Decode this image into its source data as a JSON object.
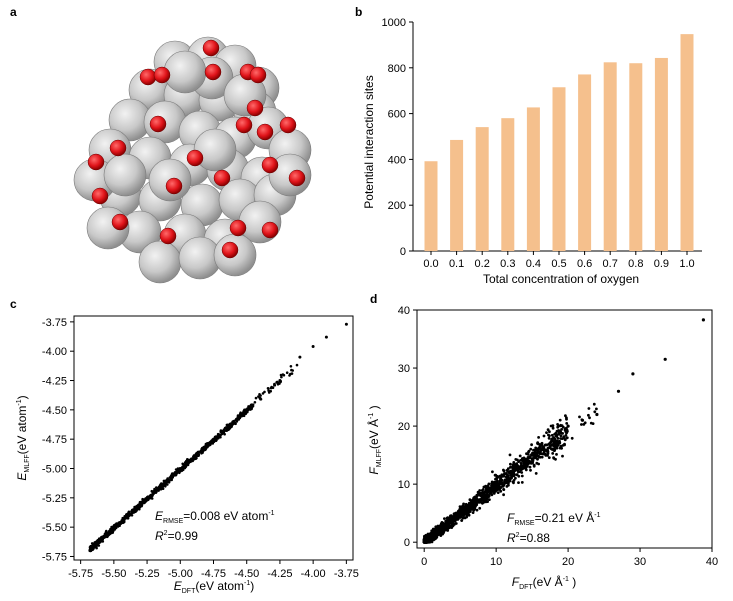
{
  "panels": {
    "a": "a",
    "b": "b",
    "c": "c",
    "d": "d"
  },
  "colors": {
    "bar": "#f5c08d",
    "atom_metal": "#c8c8c8",
    "atom_oxygen": "#e0141a",
    "points": "#000000"
  },
  "cluster": {
    "metal_atom_count": 50,
    "oxygen_atom_count": 24
  },
  "chart_data": [
    {
      "panel": "b",
      "type": "bar",
      "categories": [
        "0.0",
        "0.1",
        "0.2",
        "0.3",
        "0.4",
        "0.5",
        "0.6",
        "0.7",
        "0.8",
        "0.9",
        "1.0"
      ],
      "values": [
        392,
        485,
        541,
        580,
        627,
        715,
        771,
        824,
        820,
        843,
        947
      ],
      "xlabel": "Total concentration of oxygen",
      "ylabel": "Potential interaction sites",
      "ylim": [
        0,
        1000
      ],
      "yticks": [
        "0",
        "200",
        "400",
        "600",
        "800",
        "1000"
      ],
      "grid": false
    },
    {
      "panel": "c",
      "type": "scatter",
      "xlabel": {
        "sym": "E",
        "sub": "DFT",
        "unit": "(eV atom",
        "sup": "-1",
        "close": ")"
      },
      "ylabel": {
        "sym": "E",
        "sub": "MLFF",
        "unit": "(eV atom",
        "sup": "-1",
        "close": ")"
      },
      "xlim": [
        -5.8,
        -3.7
      ],
      "ylim": [
        -5.78,
        -3.7
      ],
      "xticks": [
        "-5.75",
        "-5.50",
        "-5.25",
        "-5.00",
        "-4.75",
        "-4.50",
        "-4.25",
        "-4.00",
        "-3.75"
      ],
      "yticks": [
        "-3.75",
        "-4.00",
        "-4.25",
        "-4.50",
        "-4.75",
        "-5.00",
        "-5.25",
        "-5.50",
        "-5.75"
      ],
      "annotation": {
        "sym": "E",
        "sub": "RMSE",
        "value": "=0.008 eV atom",
        "sup": "-1",
        "r2_sym": "R",
        "r2_sup": "2",
        "r2_value": "=0.99"
      },
      "points_description": "dense diagonal band from (-5.68,-5.70) to (-3.75,-3.77)",
      "x": [
        -5.68,
        -5.55,
        -5.4,
        -5.25,
        -5.1,
        -5.0,
        -4.9,
        -4.75,
        -4.6,
        -4.5,
        -4.4,
        -4.25,
        -4.1,
        -4.0,
        -3.9,
        -3.75
      ],
      "y": [
        -5.7,
        -5.56,
        -5.41,
        -5.26,
        -5.1,
        -5.0,
        -4.9,
        -4.75,
        -4.6,
        -4.5,
        -4.4,
        -4.25,
        -4.05,
        -3.96,
        -3.88,
        -3.77
      ],
      "grid": false
    },
    {
      "panel": "d",
      "type": "scatter",
      "xlabel": {
        "sym": "F",
        "sub": "DFT",
        "unit": "(eV Å",
        "sup": "-1",
        "close": " )"
      },
      "ylabel": {
        "sym": "F",
        "sub": "MLFF",
        "unit": "(eV Å",
        "sup": "-1",
        "close": " )"
      },
      "xlim": [
        -1,
        40
      ],
      "ylim": [
        -1,
        40
      ],
      "xticks": [
        "0",
        "10",
        "20",
        "30",
        "40"
      ],
      "yticks": [
        "0",
        "10",
        "20",
        "30",
        "40"
      ],
      "annotation": {
        "sym": "F",
        "sub": "RMSE",
        "value": "=0.21 eV Å",
        "sup": "-1",
        "r2_sym": "R",
        "r2_sup": "2",
        "r2_value": "=0.88"
      },
      "x": [
        0.5,
        2,
        4,
        6,
        8,
        10,
        12,
        14,
        16,
        18,
        20,
        22,
        24,
        27,
        29,
        33.5,
        38.8
      ],
      "y": [
        0.5,
        2,
        4,
        6,
        8,
        10,
        12,
        14,
        16,
        18,
        20,
        21,
        22,
        26,
        29,
        31.5,
        38.3
      ],
      "grid": false
    }
  ]
}
